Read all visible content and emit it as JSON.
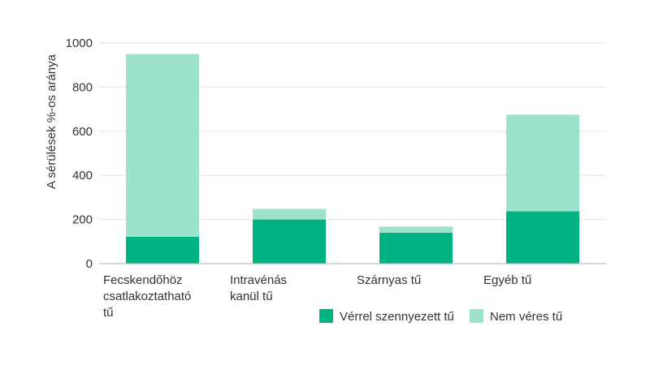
{
  "chart_data": {
    "type": "bar",
    "stacked": true,
    "categories": [
      [
        "Fecskendőhöz",
        "csatlakoztatható",
        "tű"
      ],
      [
        "Intravénás",
        "kanül tű"
      ],
      [
        "Szárnyas tű"
      ],
      [
        "Egyéb tű"
      ]
    ],
    "series": [
      {
        "name": "Vérrel szennyezett tű",
        "color": "#00b383",
        "values": [
          122,
          200,
          140,
          237
        ]
      },
      {
        "name": "Nem véres tű",
        "color": "#9ce2cc",
        "values": [
          828,
          48,
          28,
          438
        ]
      }
    ],
    "ylabel": "A sérülések %-os aránya",
    "ylim": [
      0,
      1000
    ],
    "yticks": [
      0,
      200,
      400,
      600,
      800,
      1000
    ],
    "grid": true,
    "legend": "bottom-right"
  }
}
